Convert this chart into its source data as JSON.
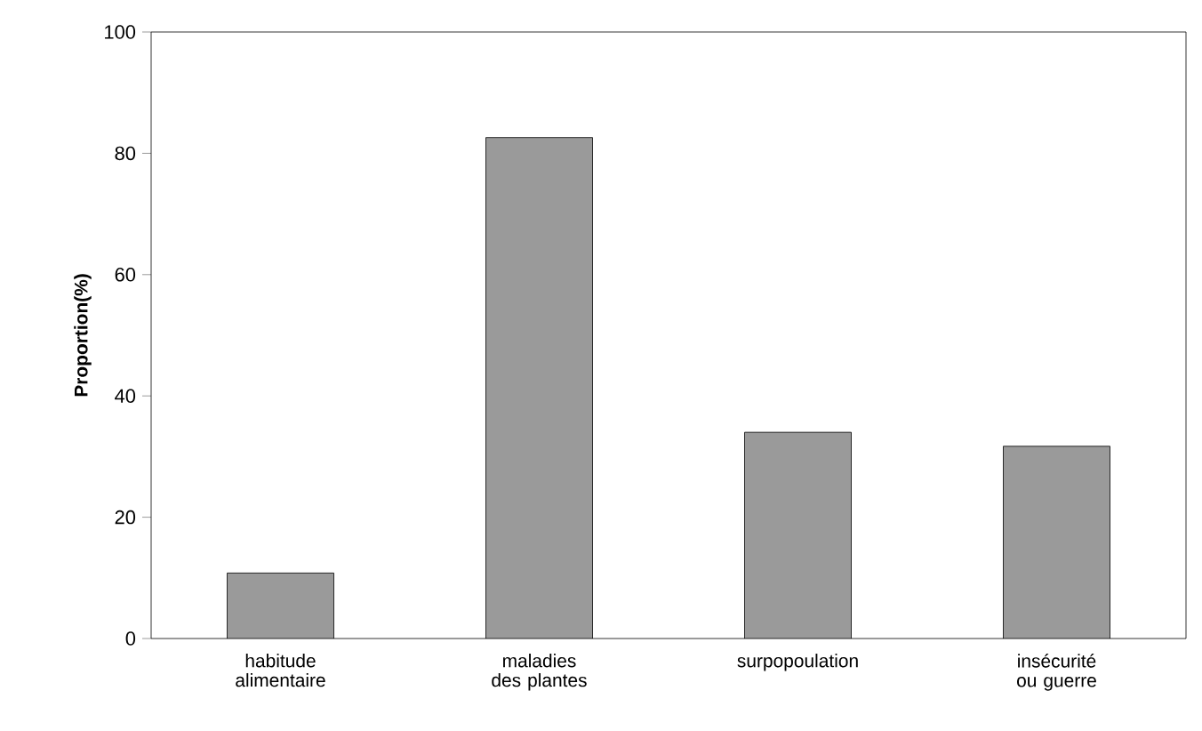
{
  "chart_data": {
    "type": "bar",
    "ylabel": "Proportion(%)",
    "categories": [
      "habitude alimentaire",
      "maladies des plantes",
      "surpopoulation",
      "insécurité ou guerre"
    ],
    "values": [
      10.8,
      82.6,
      34.0,
      31.7
    ],
    "color": "#9a9a9a",
    "ylim": [
      0,
      100
    ],
    "yticks": [
      0,
      20,
      40,
      60,
      80,
      100
    ],
    "grid": false
  }
}
